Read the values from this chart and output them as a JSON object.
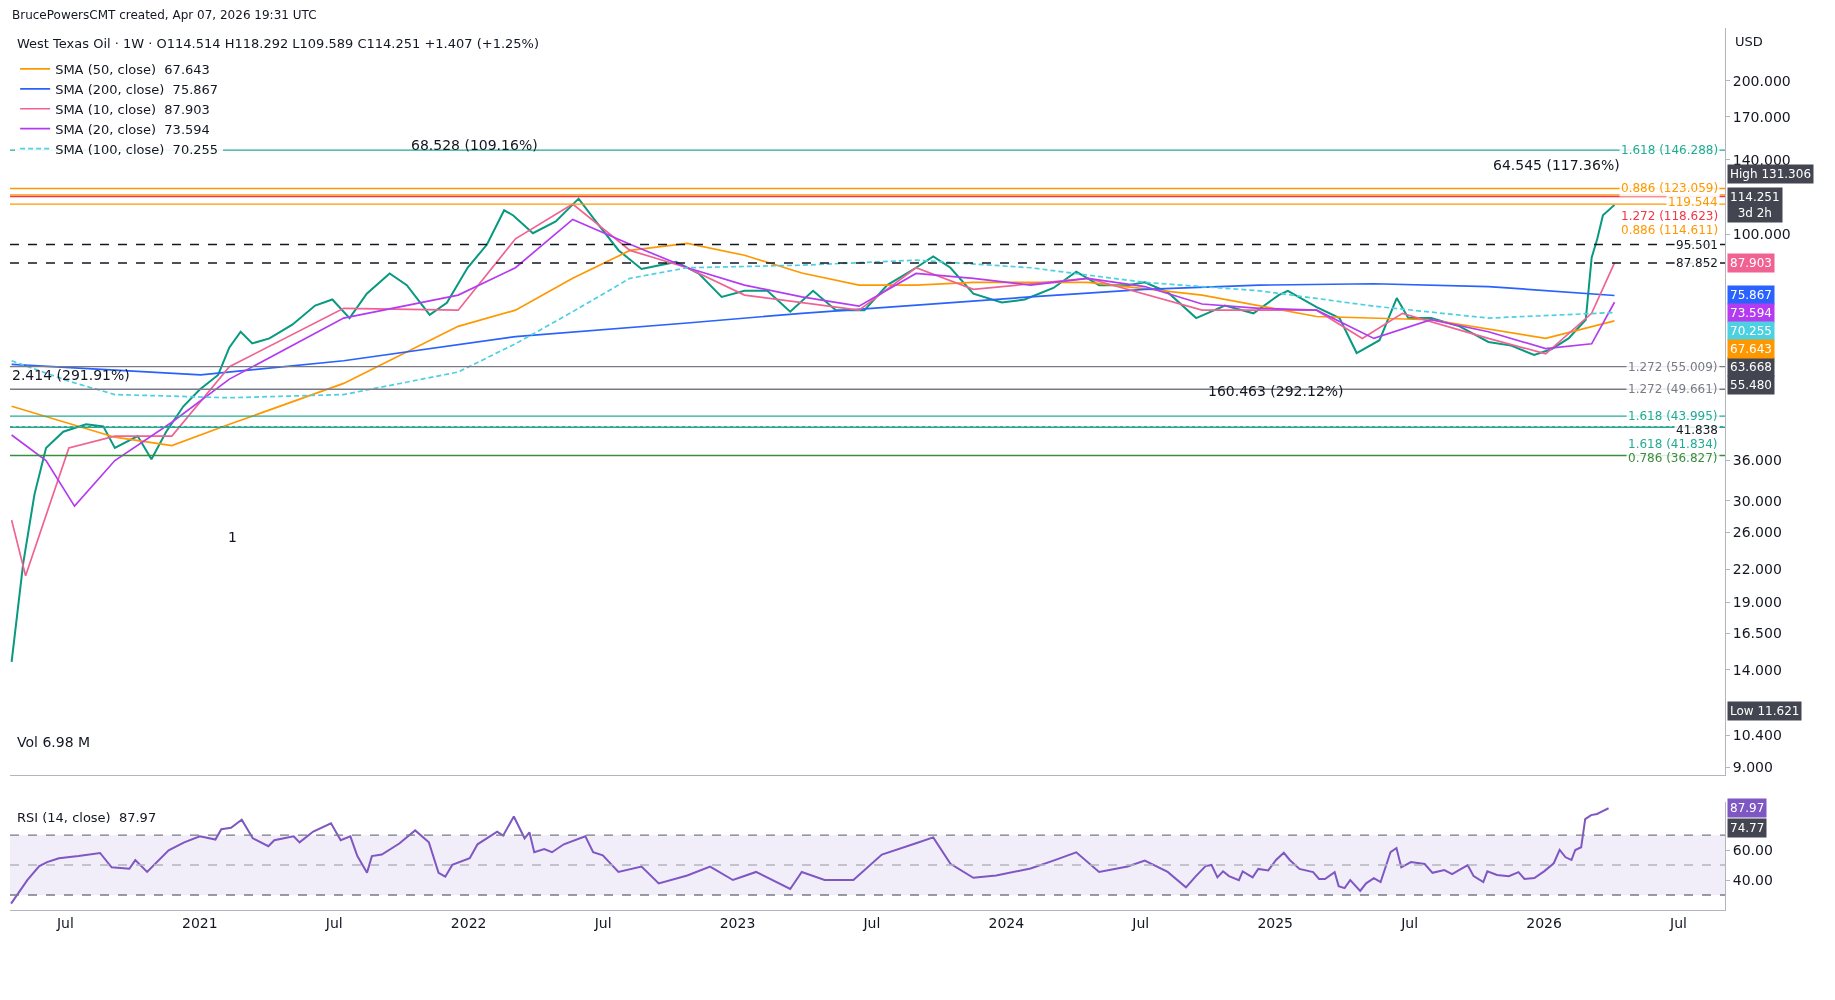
{
  "chart_data": [
    {
      "type": "line",
      "title": "West Texas Oil · 1W · O114.514 H118.292 L109.589 C114.251 +1.407 (+1.25%)",
      "ylabel": "USD",
      "log": "y",
      "legend": "top left",
      "tick_labels": "y",
      "xlim": [
        2020.294,
        2026.673
      ],
      "ylim": [
        8.7,
        254
      ],
      "yticks": [
        {
          "value": 200,
          "label": "200.000"
        },
        {
          "value": 170,
          "label": "170.000"
        },
        {
          "value": 140,
          "label": "140.000"
        },
        {
          "value": 100,
          "label": "100.000"
        },
        {
          "value": 36,
          "label": "36.000"
        },
        {
          "value": 30,
          "label": "30.000"
        },
        {
          "value": 26,
          "label": "26.000"
        },
        {
          "value": 22,
          "label": "22.000"
        },
        {
          "value": 19,
          "label": "19.000"
        },
        {
          "value": 16.5,
          "label": "16.500"
        },
        {
          "value": 14,
          "label": "14.000"
        },
        {
          "value": 10.4,
          "label": "10.400"
        },
        {
          "value": 9,
          "label": "9.000"
        }
      ],
      "series": [
        {
          "color": "#089981",
          "x": [
            2020.3,
            2020.343,
            2020.385,
            2020.428,
            2020.492,
            2020.577,
            2020.641,
            2020.684,
            2020.769,
            2020.82,
            2020.875,
            2020.939,
            2021.0,
            2021.068,
            2021.11,
            2021.152,
            2021.195,
            2021.259,
            2021.344,
            2021.429,
            2021.493,
            2021.557,
            2021.621,
            2021.706,
            2021.77,
            2021.855,
            2021.919,
            2021.996,
            2022.068,
            2022.132,
            2022.166,
            2022.239,
            2022.324,
            2022.409,
            2022.473,
            2022.558,
            2022.643,
            2022.771,
            2022.856,
            2022.941,
            2023.026,
            2023.111,
            2023.196,
            2023.281,
            2023.366,
            2023.472,
            2023.557,
            2023.664,
            2023.728,
            2023.792,
            2023.877,
            2023.983,
            2024.068,
            2024.175,
            2024.26,
            2024.345,
            2024.451,
            2024.515,
            2024.6,
            2024.706,
            2024.813,
            2024.919,
            2025.013,
            2025.047,
            2025.154,
            2025.239,
            2025.303,
            2025.388,
            2025.452,
            2025.495,
            2025.58,
            2025.686,
            2025.793,
            2025.878,
            2025.963,
            2026.027,
            2026.091,
            2026.155,
            2026.177,
            2026.198,
            2026.219,
            2026.262
          ],
          "values": [
            14.5,
            22.6,
            30.9,
            38.1,
            41,
            42.4,
            42,
            38.1,
            40.2,
            36.2,
            41,
            46,
            49.6,
            53,
            60,
            64.4,
            61.1,
            62.5,
            66.5,
            72.5,
            74.5,
            68.5,
            76.5,
            83.8,
            79.5,
            69.5,
            73.4,
            86,
            95.5,
            111.5,
            108.9,
            100.5,
            106,
            117.5,
            106,
            93,
            85.5,
            88.3,
            83.8,
            75.4,
            77.5,
            77.5,
            70.5,
            77.5,
            71,
            71,
            79.5,
            86,
            90.5,
            86,
            76.5,
            73.5,
            74.5,
            78.5,
            84.5,
            79.5,
            79.5,
            80.5,
            77,
            68.5,
            72.5,
            70,
            76,
            77.5,
            72,
            68.5,
            58.5,
            62,
            75,
            68.5,
            68.5,
            66,
            61.5,
            60.5,
            58,
            59.5,
            62.5,
            68,
            90,
            98,
            109,
            114.251
          ]
        },
        {
          "name": "SMA (50, close)  67.643",
          "color": "#ff9800",
          "x": [
            2020.3,
            2020.684,
            2020.896,
            2021.11,
            2021.535,
            2021.961,
            2022.174,
            2022.387,
            2022.6,
            2022.813,
            2023.026,
            2023.239,
            2023.452,
            2023.664,
            2023.877,
            2024.303,
            2024.728,
            2025.154,
            2025.58,
            2026.006,
            2026.262
          ],
          "values": [
            46,
            40,
            38.5,
            42.4,
            51,
            66,
            71,
            82,
            93,
            96,
            91,
            84,
            79.5,
            79.5,
            80.5,
            80.5,
            76,
            69,
            68,
            62.5,
            67.643
          ]
        },
        {
          "name": "SMA (200, close)  75.867",
          "color": "#2962ff",
          "x": [
            2020.3,
            2021.003,
            2021.535,
            2022.174,
            2022.813,
            2023.239,
            2024.09,
            2024.515,
            2024.941,
            2025.367,
            2025.793,
            2026.262
          ],
          "values": [
            55.6,
            53,
            56.5,
            63,
            67,
            70,
            75.4,
            78,
            79.5,
            80,
            79,
            75.867
          ]
        },
        {
          "name": "SMA (10, close)  87.903",
          "color": "#f06292",
          "x": [
            2020.3,
            2020.352,
            2020.513,
            2020.684,
            2020.896,
            2021.11,
            2021.535,
            2021.961,
            2022.174,
            2022.387,
            2022.6,
            2022.813,
            2023.026,
            2023.452,
            2023.664,
            2023.877,
            2024.303,
            2024.728,
            2025.154,
            2025.324,
            2025.473,
            2025.793,
            2026.006,
            2026.177,
            2026.262
          ],
          "values": [
            27.5,
            21.4,
            38.1,
            40.2,
            40.2,
            55,
            71.6,
            71,
            98,
            114.7,
            93,
            86,
            76,
            71,
            86,
            78,
            82,
            71,
            71,
            62.5,
            70,
            62.5,
            58.3,
            70,
            87.903
          ]
        },
        {
          "name": "SMA (20, close)  73.594",
          "color": "#b43bf0",
          "x": [
            2020.3,
            2020.428,
            2020.534,
            2020.684,
            2020.896,
            2021.11,
            2021.535,
            2021.961,
            2022.174,
            2022.387,
            2022.6,
            2022.813,
            2023.026,
            2023.239,
            2023.452,
            2023.664,
            2023.877,
            2024.09,
            2024.303,
            2024.515,
            2024.728,
            2024.941,
            2025.154,
            2025.367,
            2025.58,
            2025.793,
            2026.006,
            2026.177,
            2026.262
          ],
          "values": [
            40.4,
            36,
            29.3,
            36,
            42.8,
            52,
            68.5,
            76,
            86,
            107,
            95.6,
            86,
            79.5,
            75.4,
            72.3,
            83.8,
            82,
            79.5,
            82,
            79,
            73,
            71.6,
            71,
            62.5,
            68,
            64.4,
            59.7,
            61,
            73.594
          ]
        },
        {
          "name": "SMA (100, close)  70.255",
          "color": "#4dd0e1",
          "line_style": "dashed",
          "x": [
            2020.3,
            2020.513,
            2020.684,
            2021.11,
            2021.535,
            2021.961,
            2022.174,
            2022.387,
            2022.6,
            2022.813,
            2023.239,
            2023.664,
            2024.09,
            2024.515,
            2024.941,
            2025.367,
            2025.793,
            2026.262
          ],
          "values": [
            56.5,
            51.5,
            48.5,
            47.8,
            48.5,
            53.7,
            61,
            70.5,
            82,
            86,
            87,
            89,
            86,
            80.5,
            77.5,
            72.3,
            68.5,
            70.255
          ]
        }
      ],
      "ref_lines": [
        {
          "axis": "y",
          "value": 119.544,
          "label": "119.544",
          "color": "#ff9800"
        },
        {
          "axis": "y",
          "value": 95.501,
          "label": "95.501",
          "color": "#131722",
          "line_style": "dashed"
        },
        {
          "axis": "y",
          "value": 87.852,
          "label": "87.852",
          "color": "#131722",
          "line_style": "dashed"
        },
        {
          "axis": "y",
          "value": 41.838,
          "label": "41.838",
          "color": "#131722",
          "line_style": "dotted"
        },
        {
          "axis": "y",
          "value": 146.288,
          "label": "1.618 (146.288)",
          "color": "#22ab94"
        },
        {
          "axis": "y",
          "value": 123.059,
          "label": "0.886 (123.059)",
          "color": "#ff9800"
        },
        {
          "axis": "y",
          "value": 118.623,
          "label": "1.272 (118.623)",
          "color": "#f23645"
        },
        {
          "axis": "y",
          "value": 114.611,
          "label": "0.886 (114.611)",
          "color": "#ff9800"
        },
        {
          "axis": "y",
          "value": 55.009,
          "label": "1.272 (55.009)",
          "color": "#787b86"
        },
        {
          "axis": "y",
          "value": 49.661,
          "label": "1.272 (49.661)",
          "color": "#787b86"
        },
        {
          "axis": "y",
          "value": 43.995,
          "label": "1.618 (43.995)",
          "color": "#22ab94"
        },
        {
          "axis": "y",
          "value": 41.834,
          "label": "1.618 (41.834)",
          "color": "#22ab94"
        },
        {
          "axis": "y",
          "value": 36.827,
          "label": "0.786 (36.827)",
          "color": "#388e3c"
        }
      ],
      "annotations": [
        "BrucePowersCMT created, Apr 07, 2026 19:31 UTC",
        "68.528 (109.16%)",
        "64.545 (117.36%)",
        "160.463 (292.12%)",
        "2.414 (291.91%)",
        "1",
        "Vol 6.98 M",
        "High 131.306",
        "114.251\n3d 2h",
        "Low 11.621",
        "63.668",
        "55.480",
        "87.903",
        "75.867",
        "73.594",
        "70.255",
        "67.643"
      ]
    },
    {
      "type": "line",
      "title": "RSI (14, close)  87.97",
      "xlim": [
        2020.294,
        2026.673
      ],
      "ylim": [
        20,
        92
      ],
      "xticks": [
        {
          "value": 2020.5,
          "label": "Jul"
        },
        2021,
        {
          "value": 2021.5,
          "label": "Jul"
        },
        2022,
        {
          "value": 2022.5,
          "label": "Jul"
        },
        2023,
        {
          "value": 2023.5,
          "label": "Jul"
        },
        2024,
        {
          "value": 2024.5,
          "label": "Jul"
        },
        2025,
        {
          "value": 2025.5,
          "label": "Jul"
        },
        2026,
        {
          "value": 2026.5,
          "label": "Jul"
        }
      ],
      "yticks": [
        {
          "value": 40,
          "label": "40.00"
        },
        {
          "value": 60,
          "label": "60.00"
        }
      ],
      "series": [
        {
          "color": "#7e57c2",
          "x": [
            2020.298,
            2020.359,
            2020.403,
            2020.432,
            2020.476,
            2020.549,
            2020.629,
            2020.672,
            2020.738,
            2020.76,
            2020.804,
            2020.884,
            2020.942,
            2021.0,
            2021.058,
            2021.08,
            2021.116,
            2021.156,
            2021.197,
            2021.255,
            2021.277,
            2021.349,
            2021.371,
            2021.422,
            2021.488,
            2021.524,
            2021.56,
            2021.586,
            2021.622,
            2021.64,
            2021.677,
            2021.742,
            2021.801,
            2021.852,
            2021.888,
            2021.913,
            2021.939,
            2022.004,
            2022.033,
            2022.106,
            2022.128,
            2022.168,
            2022.208,
            2022.226,
            2022.244,
            2022.281,
            2022.31,
            2022.354,
            2022.434,
            2022.463,
            2022.499,
            2022.557,
            2022.643,
            2022.707,
            2022.813,
            2022.898,
            2022.983,
            2023.069,
            2023.196,
            2023.239,
            2023.324,
            2023.431,
            2023.537,
            2023.664,
            2023.728,
            2023.792,
            2023.877,
            2023.962,
            2024.09,
            2024.175,
            2024.26,
            2024.345,
            2024.451,
            2024.515,
            2024.6,
            2024.668,
            2024.705,
            2024.741,
            2024.763,
            2024.785,
            2024.806,
            2024.828,
            2024.865,
            2024.879,
            2024.916,
            2024.937,
            2024.974,
            2025.003,
            2025.032,
            2025.054,
            2025.09,
            2025.141,
            2025.163,
            2025.185,
            2025.221,
            2025.236,
            2025.258,
            2025.279,
            2025.316,
            2025.338,
            2025.367,
            2025.392,
            2025.429,
            2025.451,
            2025.469,
            2025.505,
            2025.556,
            2025.585,
            2025.629,
            2025.658,
            2025.716,
            2025.738,
            2025.774,
            2025.789,
            2025.825,
            2025.869,
            2025.905,
            2025.927,
            2025.964,
            2026.0,
            2026.036,
            2026.058,
            2026.08,
            2026.102,
            2026.116,
            2026.138,
            2026.153,
            2026.175,
            2026.197,
            2026.218,
            2026.24
          ],
          "values": [
            24.2,
            40.1,
            49.3,
            52,
            54.6,
            56,
            58.1,
            48.5,
            47.5,
            53.3,
            45.4,
            59.9,
            65.2,
            69.2,
            67.1,
            74,
            75,
            80.3,
            67.9,
            62.6,
            66.6,
            69.2,
            65.2,
            72.4,
            77.9,
            66.6,
            69.2,
            56,
            44.8,
            56,
            57,
            64.4,
            73.2,
            65.2,
            44.8,
            42.2,
            50.1,
            54.6,
            63.9,
            72.4,
            69.7,
            82.5,
            67.9,
            71.9,
            58.6,
            60.7,
            58.6,
            63.9,
            69.2,
            58.6,
            56.5,
            45.4,
            49,
            37.7,
            43,
            49,
            40,
            45.4,
            34,
            45.4,
            40,
            40,
            57,
            64.6,
            68.5,
            50.8,
            41.5,
            43,
            47.7,
            53,
            58.5,
            45.4,
            49,
            53,
            45.4,
            35.1,
            42.6,
            49.3,
            50.1,
            41.8,
            45.8,
            42.6,
            39.9,
            45.8,
            41.8,
            47.4,
            46.4,
            53.4,
            58.2,
            53.4,
            47.4,
            45.3,
            40.7,
            40.7,
            45.3,
            35.9,
            34.6,
            39.9,
            32.7,
            37.8,
            41.3,
            38.6,
            58.7,
            61.4,
            48.5,
            52,
            50.7,
            44.8,
            46.6,
            44,
            49.9,
            42.6,
            38.6,
            45.8,
            43.4,
            42.6,
            45.3,
            40.7,
            41.3,
            45.8,
            51.2,
            60.1,
            55.2,
            53.4,
            60.1,
            61.9,
            80.7,
            83.4,
            84.2,
            86.1,
            88
          ]
        }
      ],
      "bands": [
        {
          "axis": "y",
          "from": 30,
          "to": 70,
          "color": "#7e57c2"
        }
      ],
      "ref_lines": [
        {
          "axis": "y",
          "value": 70,
          "color": "#787b86",
          "line_style": "dashed"
        },
        {
          "axis": "y",
          "value": 50,
          "color": "#b2b5be",
          "line_style": "dashed"
        },
        {
          "axis": "y",
          "value": 30,
          "color": "#787b86",
          "line_style": "dashed"
        }
      ],
      "annotations": [
        "87.97",
        "74.77"
      ]
    }
  ]
}
